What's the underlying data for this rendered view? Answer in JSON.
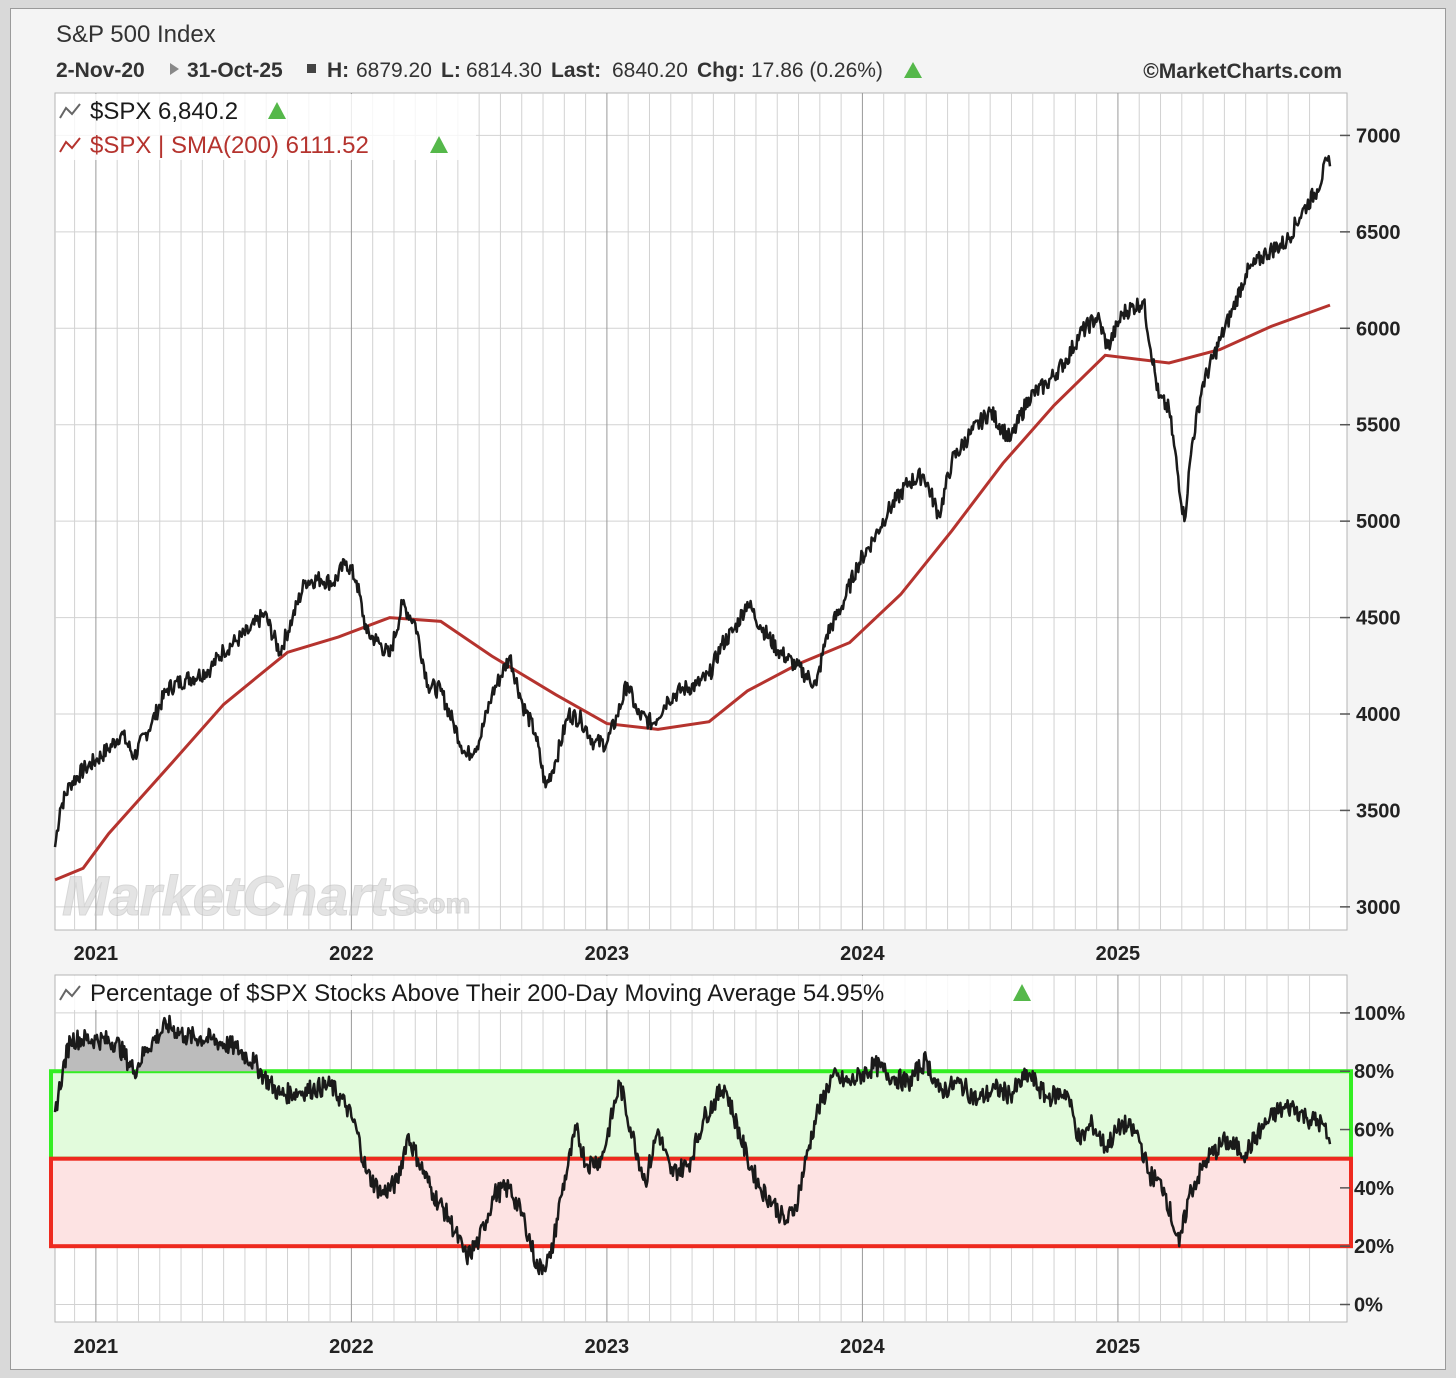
{
  "header": {
    "title": "S&P 500 Index",
    "start": "2-Nov-20",
    "end": "31-Oct-25",
    "h_label": "H:",
    "h_value": "6879.20",
    "l_label": "L:",
    "l_value": "6814.30",
    "last_label": "Last:",
    "last_value": "6840.20",
    "chg_label": "Chg:",
    "chg_value": "17.86 (0.26%)",
    "copyright": "©MarketCharts.com"
  },
  "watermark": {
    "main": "MarketCharts",
    "suffix": ".com"
  },
  "legend": {
    "price": "$SPX 6,840.2",
    "sma": "$SPX | SMA(200) 6111.52",
    "breadth": "Percentage of $SPX Stocks Above Their 200-Day Moving Average 54.95%"
  },
  "colors": {
    "price": "#1a1a1a",
    "sma": "#b5332e",
    "up_arrow": "#55b84a",
    "green_band_fill": "#e2fbdc",
    "green_band_stroke": "#33ee22",
    "red_band_fill": "#fde3e3",
    "red_band_stroke": "#ee2a1f",
    "overbought_fill": "#bcbcbc"
  },
  "chart_data": [
    {
      "type": "line",
      "title": "S&P 500 Index",
      "x_unit": "year",
      "xlim": [
        2020.84,
        2025.83
      ],
      "ylim": [
        2880,
        7220
      ],
      "xticks": [
        "2021",
        "2022",
        "2023",
        "2024",
        "2025"
      ],
      "yticks": [
        "3000",
        "3500",
        "4000",
        "4500",
        "5000",
        "5500",
        "6000",
        "6500",
        "7000"
      ],
      "series": [
        {
          "name": "$SPX",
          "points": [
            [
              2020.84,
              3310
            ],
            [
              2020.86,
              3510
            ],
            [
              2020.9,
              3640
            ],
            [
              2020.96,
              3720
            ],
            [
              2021.0,
              3760
            ],
            [
              2021.05,
              3820
            ],
            [
              2021.1,
              3900
            ],
            [
              2021.15,
              3780
            ],
            [
              2021.22,
              3960
            ],
            [
              2021.28,
              4130
            ],
            [
              2021.35,
              4180
            ],
            [
              2021.4,
              4200
            ],
            [
              2021.45,
              4240
            ],
            [
              2021.5,
              4330
            ],
            [
              2021.55,
              4380
            ],
            [
              2021.6,
              4430
            ],
            [
              2021.66,
              4520
            ],
            [
              2021.72,
              4320
            ],
            [
              2021.77,
              4500
            ],
            [
              2021.82,
              4690
            ],
            [
              2021.88,
              4700
            ],
            [
              2021.93,
              4680
            ],
            [
              2021.98,
              4790
            ],
            [
              2022.02,
              4690
            ],
            [
              2022.06,
              4420
            ],
            [
              2022.1,
              4380
            ],
            [
              2022.15,
              4300
            ],
            [
              2022.2,
              4570
            ],
            [
              2022.25,
              4470
            ],
            [
              2022.3,
              4150
            ],
            [
              2022.35,
              4120
            ],
            [
              2022.4,
              3950
            ],
            [
              2022.45,
              3780
            ],
            [
              2022.5,
              3860
            ],
            [
              2022.55,
              4100
            ],
            [
              2022.62,
              4300
            ],
            [
              2022.67,
              4050
            ],
            [
              2022.72,
              3900
            ],
            [
              2022.76,
              3620
            ],
            [
              2022.8,
              3760
            ],
            [
              2022.85,
              4000
            ],
            [
              2022.9,
              3970
            ],
            [
              2022.95,
              3850
            ],
            [
              2023.0,
              3850
            ],
            [
              2023.04,
              3990
            ],
            [
              2023.08,
              4160
            ],
            [
              2023.12,
              4000
            ],
            [
              2023.18,
              3950
            ],
            [
              2023.24,
              4080
            ],
            [
              2023.3,
              4130
            ],
            [
              2023.35,
              4150
            ],
            [
              2023.4,
              4200
            ],
            [
              2023.45,
              4360
            ],
            [
              2023.5,
              4440
            ],
            [
              2023.55,
              4580
            ],
            [
              2023.6,
              4460
            ],
            [
              2023.67,
              4330
            ],
            [
              2023.74,
              4250
            ],
            [
              2023.82,
              4150
            ],
            [
              2023.86,
              4410
            ],
            [
              2023.92,
              4560
            ],
            [
              2023.98,
              4770
            ],
            [
              2024.04,
              4900
            ],
            [
              2024.1,
              5050
            ],
            [
              2024.18,
              5200
            ],
            [
              2024.24,
              5240
            ],
            [
              2024.3,
              5030
            ],
            [
              2024.35,
              5310
            ],
            [
              2024.42,
              5450
            ],
            [
              2024.5,
              5570
            ],
            [
              2024.58,
              5420
            ],
            [
              2024.65,
              5640
            ],
            [
              2024.72,
              5710
            ],
            [
              2024.8,
              5840
            ],
            [
              2024.85,
              5970
            ],
            [
              2024.92,
              6060
            ],
            [
              2024.96,
              5900
            ],
            [
              2025.02,
              6080
            ],
            [
              2025.1,
              6140
            ],
            [
              2025.16,
              5640
            ],
            [
              2025.2,
              5580
            ],
            [
              2025.26,
              5000
            ],
            [
              2025.29,
              5400
            ],
            [
              2025.33,
              5700
            ],
            [
              2025.4,
              5940
            ],
            [
              2025.45,
              6100
            ],
            [
              2025.5,
              6280
            ],
            [
              2025.58,
              6390
            ],
            [
              2025.66,
              6450
            ],
            [
              2025.72,
              6600
            ],
            [
              2025.78,
              6720
            ],
            [
              2025.82,
              6870
            ],
            [
              2025.83,
              6840
            ]
          ]
        },
        {
          "name": "$SPX | SMA(200)",
          "points": [
            [
              2020.84,
              3140
            ],
            [
              2020.95,
              3200
            ],
            [
              2021.05,
              3380
            ],
            [
              2021.3,
              3750
            ],
            [
              2021.5,
              4050
            ],
            [
              2021.75,
              4320
            ],
            [
              2021.95,
              4400
            ],
            [
              2022.15,
              4500
            ],
            [
              2022.35,
              4480
            ],
            [
              2022.55,
              4300
            ],
            [
              2022.8,
              4100
            ],
            [
              2023.0,
              3950
            ],
            [
              2023.2,
              3920
            ],
            [
              2023.4,
              3960
            ],
            [
              2023.55,
              4120
            ],
            [
              2023.75,
              4260
            ],
            [
              2023.95,
              4370
            ],
            [
              2024.15,
              4620
            ],
            [
              2024.35,
              4950
            ],
            [
              2024.55,
              5300
            ],
            [
              2024.75,
              5600
            ],
            [
              2024.95,
              5860
            ],
            [
              2025.2,
              5820
            ],
            [
              2025.4,
              5890
            ],
            [
              2025.6,
              6010
            ],
            [
              2025.83,
              6120
            ]
          ]
        }
      ]
    },
    {
      "type": "line",
      "title": "Percentage of $SPX Stocks Above Their 200-Day Moving Average",
      "x_unit": "year",
      "xlim": [
        2020.84,
        2025.83
      ],
      "ylim": [
        -6,
        113
      ],
      "xticks": [
        "2021",
        "2022",
        "2023",
        "2024",
        "2025"
      ],
      "yticks": [
        "100%",
        "80%",
        "60%",
        "40%",
        "20%",
        "0%"
      ],
      "bands": [
        {
          "from": 50,
          "to": 80,
          "color": "green"
        },
        {
          "from": 20,
          "to": 50,
          "color": "red"
        }
      ],
      "series": [
        {
          "name": "$SPX",
          "points": [
            [
              2020.84,
              66
            ],
            [
              2020.87,
              80
            ],
            [
              2020.9,
              91
            ],
            [
              2021.0,
              91
            ],
            [
              2021.08,
              90
            ],
            [
              2021.15,
              80
            ],
            [
              2021.2,
              88
            ],
            [
              2021.28,
              96
            ],
            [
              2021.35,
              92
            ],
            [
              2021.45,
              91
            ],
            [
              2021.55,
              88
            ],
            [
              2021.62,
              83
            ],
            [
              2021.66,
              78
            ],
            [
              2021.72,
              72
            ],
            [
              2021.8,
              73
            ],
            [
              2021.85,
              74
            ],
            [
              2021.92,
              75
            ],
            [
              2021.98,
              68
            ],
            [
              2022.02,
              60
            ],
            [
              2022.06,
              45
            ],
            [
              2022.12,
              38
            ],
            [
              2022.18,
              42
            ],
            [
              2022.22,
              58
            ],
            [
              2022.26,
              50
            ],
            [
              2022.32,
              38
            ],
            [
              2022.38,
              30
            ],
            [
              2022.45,
              16
            ],
            [
              2022.5,
              22
            ],
            [
              2022.56,
              38
            ],
            [
              2022.62,
              40
            ],
            [
              2022.68,
              28
            ],
            [
              2022.73,
              12
            ],
            [
              2022.78,
              16
            ],
            [
              2022.82,
              37
            ],
            [
              2022.88,
              60
            ],
            [
              2022.92,
              48
            ],
            [
              2022.98,
              50
            ],
            [
              2023.05,
              76
            ],
            [
              2023.1,
              58
            ],
            [
              2023.15,
              42
            ],
            [
              2023.2,
              60
            ],
            [
              2023.25,
              45
            ],
            [
              2023.32,
              48
            ],
            [
              2023.38,
              64
            ],
            [
              2023.46,
              75
            ],
            [
              2023.55,
              50
            ],
            [
              2023.6,
              40
            ],
            [
              2023.65,
              35
            ],
            [
              2023.7,
              28
            ],
            [
              2023.74,
              34
            ],
            [
              2023.78,
              50
            ],
            [
              2023.82,
              65
            ],
            [
              2023.88,
              78
            ],
            [
              2023.95,
              76
            ],
            [
              2024.05,
              82
            ],
            [
              2024.12,
              78
            ],
            [
              2024.18,
              76
            ],
            [
              2024.25,
              84
            ],
            [
              2024.3,
              73
            ],
            [
              2024.38,
              76
            ],
            [
              2024.45,
              70
            ],
            [
              2024.52,
              74
            ],
            [
              2024.58,
              72
            ],
            [
              2024.65,
              79
            ],
            [
              2024.72,
              71
            ],
            [
              2024.8,
              73
            ],
            [
              2024.85,
              56
            ],
            [
              2024.9,
              62
            ],
            [
              2024.95,
              54
            ],
            [
              2025.02,
              62
            ],
            [
              2025.08,
              58
            ],
            [
              2025.12,
              45
            ],
            [
              2025.18,
              40
            ],
            [
              2025.24,
              20
            ],
            [
              2025.28,
              38
            ],
            [
              2025.35,
              50
            ],
            [
              2025.42,
              56
            ],
            [
              2025.5,
              52
            ],
            [
              2025.56,
              60
            ],
            [
              2025.62,
              66
            ],
            [
              2025.68,
              68
            ],
            [
              2025.74,
              64
            ],
            [
              2025.8,
              62
            ],
            [
              2025.83,
              55
            ]
          ]
        }
      ]
    }
  ]
}
